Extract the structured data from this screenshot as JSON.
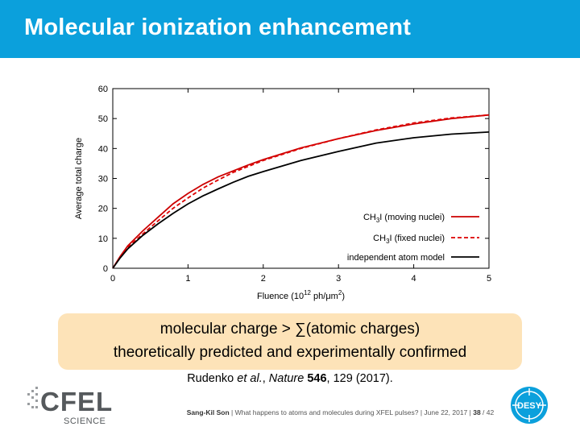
{
  "slide": {
    "title": "Molecular ionization enhancement",
    "box_line1": "molecular charge > ∑(atomic charges)",
    "box_line2": "theoretically predicted and experimentally confirmed",
    "citation": {
      "authors": "Rudenko ",
      "etal": "et al.",
      "sep": ", ",
      "journal": "Nature",
      "volume": " 546",
      "rest": ", 129 (2017)."
    },
    "footer": {
      "author": "Sang-Kil Son",
      "text": " | What happens to atoms and molecules during XFEL pulses? | June 22, 2017 | ",
      "page": "38",
      "total": " / 42"
    },
    "logo_left": {
      "main": "CFEL",
      "sub": "SCIENCE"
    },
    "logo_right": {
      "text": "DESY"
    }
  },
  "colors": {
    "title_bar": "#0ba0dc",
    "box": "#fde3b8",
    "red": "#cc0000",
    "black": "#000000"
  },
  "chart_data": {
    "type": "line",
    "xlabel": "Fluence (10^12 ph/μm^2)",
    "ylabel": "Average total charge",
    "xlim": [
      0,
      5
    ],
    "ylim": [
      0,
      60
    ],
    "xticks": [
      "0",
      "1",
      "2",
      "3",
      "4",
      "5"
    ],
    "yticks": [
      "0",
      "10",
      "20",
      "30",
      "40",
      "50",
      "60"
    ],
    "grid": false,
    "legend_position": "bottom-right",
    "series": [
      {
        "name": "CH3I (moving nuclei)",
        "style": "solid",
        "color": "#cc0000",
        "x": [
          0,
          0.1,
          0.2,
          0.4,
          0.6,
          0.8,
          1.0,
          1.2,
          1.4,
          1.6,
          1.8,
          2.0,
          2.5,
          3.0,
          3.5,
          4.0,
          4.5,
          5.0
        ],
        "y": [
          0,
          4,
          7.5,
          12.5,
          17,
          21.5,
          25,
          28,
          30.5,
          32.5,
          34.5,
          36.3,
          40.2,
          43.3,
          46,
          48.2,
          50,
          51.2
        ]
      },
      {
        "name": "CH3I (fixed nuclei)",
        "style": "dashed",
        "color": "#dd0000",
        "x": [
          0,
          0.1,
          0.2,
          0.4,
          0.6,
          0.8,
          1.0,
          1.2,
          1.4,
          1.6,
          1.8,
          2.0,
          2.5,
          3.0,
          3.5,
          4.0,
          4.5,
          5.0
        ],
        "y": [
          0,
          3.8,
          7,
          11.5,
          15.8,
          20,
          23.5,
          26.8,
          29.5,
          32,
          34,
          36,
          40,
          43.3,
          46.2,
          48.5,
          50.2,
          51.2
        ]
      },
      {
        "name": "independent atom model",
        "style": "solid",
        "color": "#000000",
        "x": [
          0,
          0.1,
          0.2,
          0.4,
          0.6,
          0.8,
          1.0,
          1.2,
          1.4,
          1.6,
          1.8,
          2.0,
          2.5,
          3.0,
          3.5,
          4.0,
          4.5,
          5.0
        ],
        "y": [
          0,
          3.5,
          6.5,
          11,
          14.8,
          18.3,
          21.5,
          24.2,
          26.5,
          28.7,
          30.7,
          32.3,
          36,
          39,
          41.8,
          43.6,
          44.8,
          45.5
        ]
      }
    ],
    "legend_labels": [
      {
        "main": "CH",
        "sub": "3",
        "tail": "I (moving nuclei)"
      },
      {
        "main": "CH",
        "sub": "3",
        "tail": "I (fixed nuclei)"
      },
      {
        "main": "independent atom model",
        "sub": "",
        "tail": ""
      }
    ],
    "xlabel_parts": {
      "a": "Fluence (10",
      "sup1": "12",
      "b": " ph/μm",
      "sup2": "2",
      "c": ")"
    }
  }
}
